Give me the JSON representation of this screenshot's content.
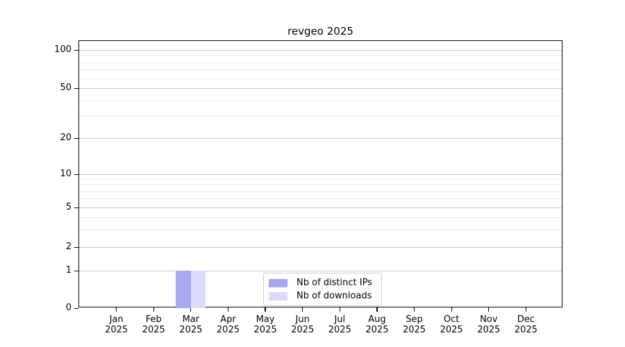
{
  "chart": {
    "title": "revgeo 2025",
    "x_axis": {
      "months": [
        "Jan",
        "Feb",
        "Mar",
        "Apr",
        "May",
        "Jun",
        "Jul",
        "Aug",
        "Sep",
        "Oct",
        "Nov",
        "Dec"
      ],
      "year": "2025"
    },
    "y_axis": {
      "tick_labels": [
        "100",
        "50",
        "20",
        "10",
        "5",
        "2",
        "1",
        "0"
      ]
    },
    "legend": {
      "items": [
        {
          "label": "Nb of distinct IPs",
          "color": "#a9a9f0"
        },
        {
          "label": "Nb of downloads",
          "color": "#dcdcf8"
        }
      ]
    },
    "colors": {
      "axis": "#000000",
      "grid_major": "#c6c6c6",
      "grid_minor": "#ececec",
      "legend_border": "#cccccc"
    }
  },
  "chart_data": {
    "type": "bar",
    "title": "revgeo 2025",
    "categories": [
      "Jan 2025",
      "Feb 2025",
      "Mar 2025",
      "Apr 2025",
      "May 2025",
      "Jun 2025",
      "Jul 2025",
      "Aug 2025",
      "Sep 2025",
      "Oct 2025",
      "Nov 2025",
      "Dec 2025"
    ],
    "series": [
      {
        "name": "Nb of distinct IPs",
        "color": "#a9a9f0",
        "values": [
          0,
          0,
          1,
          0,
          0,
          0,
          0,
          0,
          0,
          0,
          0,
          0
        ]
      },
      {
        "name": "Nb of downloads",
        "color": "#dcdcf8",
        "values": [
          0,
          0,
          1,
          0,
          0,
          0,
          0,
          0,
          0,
          0,
          0,
          0
        ]
      }
    ],
    "xlabel": "",
    "ylabel": "",
    "yscale": "symlog",
    "ytick_values": [
      0,
      1,
      2,
      5,
      10,
      20,
      50,
      100
    ],
    "ylim": [
      0,
      120
    ],
    "grid": true,
    "legend_position": "lower center",
    "bar_width_fraction": 0.4
  }
}
